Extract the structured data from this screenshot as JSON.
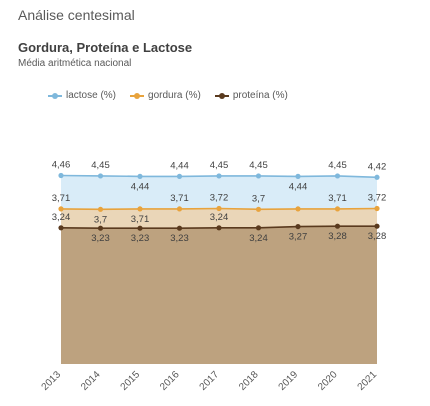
{
  "page": {
    "header": "Análise centesimal"
  },
  "chart_data": {
    "type": "area",
    "title": "Gordura, Proteína e Lactose",
    "subtitle": "Média aritmética nacional",
    "categories": [
      "2013",
      "2014",
      "2015",
      "2016",
      "2017",
      "2018",
      "2019",
      "2020",
      "2021"
    ],
    "series": [
      {
        "name": "lactose (%)",
        "color": "#7fb8dc",
        "fill": "#d9ecf8",
        "values": [
          4.46,
          4.45,
          4.44,
          4.44,
          4.45,
          4.45,
          4.44,
          4.45,
          4.42
        ],
        "labels": [
          "4,46",
          "4,45",
          "4,44",
          "4,44",
          "4,45",
          "4,45",
          "4,44",
          "4,45",
          "4,42"
        ],
        "label_pos": [
          "above",
          "above",
          "below",
          "above",
          "above",
          "above",
          "below",
          "above",
          "above"
        ]
      },
      {
        "name": "gordura (%)",
        "color": "#e8a33d",
        "fill": "#ead6b8",
        "values": [
          3.71,
          3.7,
          3.71,
          3.71,
          3.72,
          3.7,
          3.71,
          3.71,
          3.72
        ],
        "labels": [
          "3,71",
          "3,7",
          "3,71",
          "3,71",
          "3,72",
          "3,7",
          "",
          "3,71",
          "3,72"
        ],
        "label_pos": [
          "above",
          "below",
          "below",
          "above",
          "above",
          "above",
          "above",
          "above",
          "above"
        ]
      },
      {
        "name": "proteína (%)",
        "color": "#5a3a1e",
        "fill": "#bda27f",
        "values": [
          3.24,
          3.23,
          3.23,
          3.23,
          3.24,
          3.24,
          3.27,
          3.28,
          3.28
        ],
        "labels": [
          "3,24",
          "3,23",
          "3,23",
          "3,23",
          "3,24",
          "3,24",
          "3,27",
          "3,28",
          "3,28"
        ],
        "label_pos": [
          "above",
          "below",
          "below",
          "below",
          "above",
          "below",
          "below",
          "below",
          "below"
        ]
      }
    ],
    "legend_position": "top-left",
    "grid": false
  }
}
